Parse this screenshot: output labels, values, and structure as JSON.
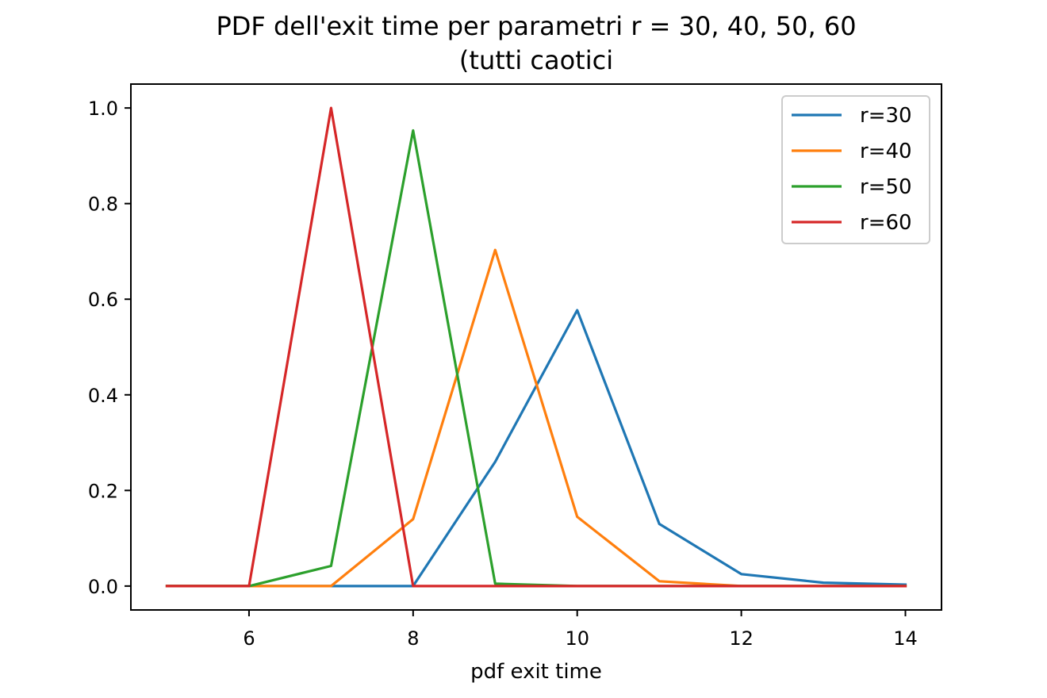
{
  "chart_data": {
    "type": "line",
    "title": "PDF dell'exit time per parametri r = 30, 40, 50, 60",
    "subtitle": "(tutti caotici",
    "xlabel": "pdf exit time",
    "ylabel": "",
    "xlim": [
      4.56,
      14.44
    ],
    "ylim": [
      -0.05,
      1.05
    ],
    "xticks": [
      6,
      8,
      10,
      12,
      14
    ],
    "xtick_labels": [
      "6",
      "8",
      "10",
      "12",
      "14"
    ],
    "yticks": [
      0.0,
      0.2,
      0.4,
      0.6,
      0.8,
      1.0
    ],
    "ytick_labels": [
      "0.0",
      "0.2",
      "0.4",
      "0.6",
      "0.8",
      "1.0"
    ],
    "grid": false,
    "legend_position": "top-right",
    "x": [
      5,
      6,
      7,
      8,
      9,
      10,
      11,
      12,
      13,
      14
    ],
    "series": [
      {
        "name": "r=30",
        "color": "#1f77b4",
        "values": [
          0,
          0,
          0,
          0,
          0.26,
          0.577,
          0.13,
          0.025,
          0.007,
          0.003
        ]
      },
      {
        "name": "r=40",
        "color": "#ff7f0e",
        "values": [
          0,
          0,
          0,
          0.14,
          0.703,
          0.145,
          0.01,
          0,
          0,
          0
        ]
      },
      {
        "name": "r=50",
        "color": "#2ca02c",
        "values": [
          0,
          0,
          0.042,
          0.953,
          0.005,
          0,
          0,
          0,
          0,
          0
        ]
      },
      {
        "name": "r=60",
        "color": "#d62728",
        "values": [
          0,
          0,
          1.0,
          0,
          0,
          0,
          0,
          0,
          0,
          0
        ]
      }
    ]
  }
}
